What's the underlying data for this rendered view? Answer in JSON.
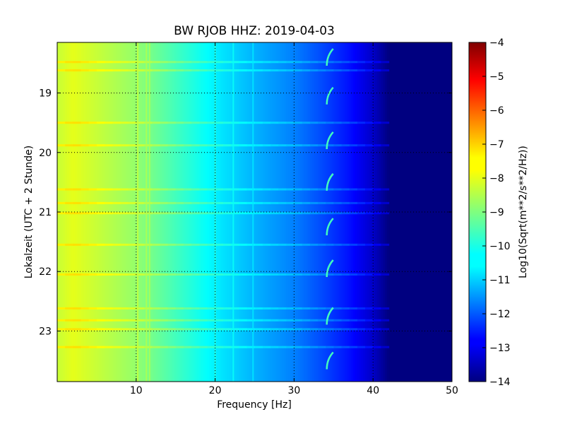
{
  "chart_data": {
    "type": "heatmap",
    "title": "BW RJOB HHZ: 2019-04-03",
    "xlabel": "Frequency [Hz]",
    "ylabel": "Lokalzeit (UTC + 2 Stunde)",
    "x_range": [
      0,
      50
    ],
    "y_range": [
      18.15,
      23.85
    ],
    "y_inverted": true,
    "x_ticks": [
      10,
      20,
      30,
      40,
      50
    ],
    "x_tick_labels": [
      "10",
      "20",
      "30",
      "40",
      "50"
    ],
    "y_ticks": [
      19,
      20,
      21,
      22,
      23
    ],
    "y_tick_labels": [
      "19",
      "20",
      "21",
      "22",
      "23"
    ],
    "grid": true,
    "colormap": "jet",
    "colorbar": {
      "label": "Log10(Sqrt(m**2/s**2/Hz))",
      "range": [
        -14,
        -4
      ],
      "ticks": [
        -4,
        -5,
        -6,
        -7,
        -8,
        -9,
        -10,
        -11,
        -12,
        -13,
        -14
      ],
      "tick_labels": [
        "−4",
        "−5",
        "−6",
        "−7",
        "−8",
        "−9",
        "−10",
        "−11",
        "−12",
        "−13",
        "−14"
      ]
    },
    "spectrum_profile": {
      "frequency_hz": [
        0,
        2,
        5,
        10,
        15,
        20,
        25,
        30,
        34,
        37,
        40,
        42,
        50
      ],
      "log10_amplitude": [
        -8.3,
        -8.0,
        -8.3,
        -8.8,
        -9.6,
        -10.4,
        -11.0,
        -11.5,
        -12.1,
        -12.6,
        -13.3,
        -14.0,
        -14.0
      ]
    },
    "features": {
      "vertical_lines_hz": [
        10.2,
        11.3,
        11.7,
        20.0,
        22.3,
        24.8
      ],
      "horizontal_bands_hour": [
        18.48,
        18.62,
        19.5,
        19.88,
        20.62,
        20.85,
        21.02,
        21.55,
        22.05,
        22.62,
        22.82,
        22.97,
        23.27
      ],
      "hook_feature_hz": 34.5,
      "hook_feature_hours": [
        18.4,
        19.05,
        19.8,
        20.5,
        21.25,
        21.95,
        22.75,
        23.5
      ]
    }
  }
}
